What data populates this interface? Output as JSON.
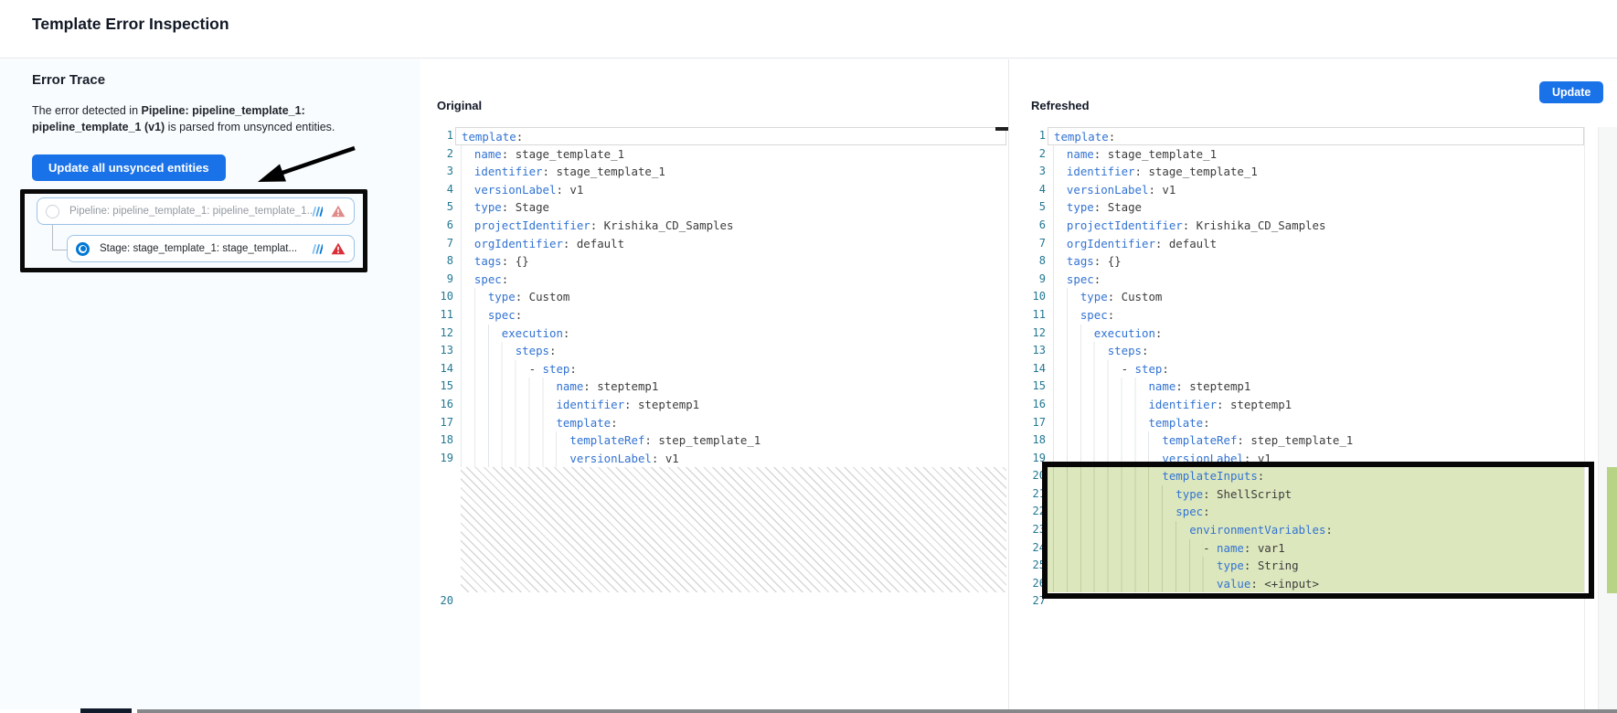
{
  "header": {
    "title": "Template Error Inspection"
  },
  "sidebar": {
    "heading": "Error Trace",
    "description": {
      "before": "The error detected in ",
      "entity": "Pipeline: pipeline_template_1: pipeline_template_1 (v1)",
      "after": " is parsed from unsynced entities."
    },
    "update_all_button": "Update all unsynced entities",
    "tree": [
      {
        "label": "Pipeline: pipeline_template_1: pipeline_template_1...",
        "selected": false,
        "status": "error"
      },
      {
        "label": "Stage: stage_template_1: stage_templat...",
        "selected": true,
        "status": "error"
      }
    ]
  },
  "panels": {
    "original": {
      "title": "Original",
      "last_line_number": 20
    },
    "refreshed": {
      "title": "Refreshed",
      "update_button": "Update",
      "last_line_number": 27
    }
  },
  "code": {
    "base_lines": [
      {
        "n": 1,
        "i": 0,
        "k": "template",
        "v": ""
      },
      {
        "n": 2,
        "i": 1,
        "k": "name",
        "v": "stage_template_1"
      },
      {
        "n": 3,
        "i": 1,
        "k": "identifier",
        "v": "stage_template_1"
      },
      {
        "n": 4,
        "i": 1,
        "k": "versionLabel",
        "v": "v1"
      },
      {
        "n": 5,
        "i": 1,
        "k": "type",
        "v": "Stage"
      },
      {
        "n": 6,
        "i": 1,
        "k": "projectIdentifier",
        "v": "Krishika_CD_Samples"
      },
      {
        "n": 7,
        "i": 1,
        "k": "orgIdentifier",
        "v": "default"
      },
      {
        "n": 8,
        "i": 1,
        "k": "tags",
        "v": "{}"
      },
      {
        "n": 9,
        "i": 1,
        "k": "spec",
        "v": ""
      },
      {
        "n": 10,
        "i": 2,
        "k": "type",
        "v": "Custom"
      },
      {
        "n": 11,
        "i": 2,
        "k": "spec",
        "v": ""
      },
      {
        "n": 12,
        "i": 3,
        "k": "execution",
        "v": ""
      },
      {
        "n": 13,
        "i": 4,
        "k": "steps",
        "v": ""
      },
      {
        "n": 14,
        "i": 5,
        "dash": true,
        "k": "step",
        "v": ""
      },
      {
        "n": 15,
        "i": 7,
        "k": "name",
        "v": "steptemp1"
      },
      {
        "n": 16,
        "i": 7,
        "k": "identifier",
        "v": "steptemp1"
      },
      {
        "n": 17,
        "i": 7,
        "k": "template",
        "v": ""
      },
      {
        "n": 18,
        "i": 8,
        "k": "templateRef",
        "v": "step_template_1"
      },
      {
        "n": 19,
        "i": 8,
        "k": "versionLabel",
        "v": "v1"
      }
    ],
    "inserted_lines": [
      {
        "n": 20,
        "i": 8,
        "k": "templateInputs",
        "v": ""
      },
      {
        "n": 21,
        "i": 9,
        "k": "type",
        "v": "ShellScript"
      },
      {
        "n": 22,
        "i": 9,
        "k": "spec",
        "v": ""
      },
      {
        "n": 23,
        "i": 10,
        "k": "environmentVariables",
        "v": ""
      },
      {
        "n": 24,
        "i": 11,
        "dash": true,
        "k": "name",
        "v": "var1"
      },
      {
        "n": 25,
        "i": 12,
        "k": "type",
        "v": "String"
      },
      {
        "n": 26,
        "i": 12,
        "k": "value",
        "v": "<+input>"
      }
    ]
  },
  "colors": {
    "accent_blue": "#1a72e8",
    "harness_blue": "#0278d5",
    "key_blue": "#3273d2",
    "line_number": "#237893",
    "insert_green_bg": "#dce7bd",
    "ruler_green": "#b7d385",
    "warning_red": "#da2f36",
    "warning_red_muted": "#e08a8a",
    "annotation_black": "#0a0a0a"
  }
}
